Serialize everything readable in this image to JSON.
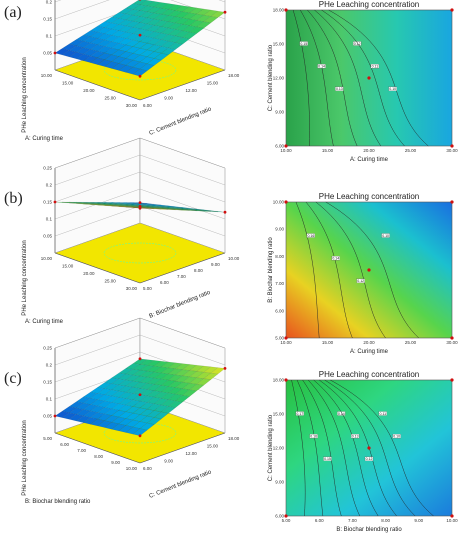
{
  "panels": [
    {
      "letter": "(a)"
    },
    {
      "letter": "(b)"
    },
    {
      "letter": "(c)"
    }
  ],
  "chart_data": [
    {
      "type": "surface",
      "panel": "(a)",
      "zlabel": "PHe Leaching concentration",
      "xlabel": "A: Curing time",
      "ylabel": "C: Cement blending ratio",
      "x_ticks": [
        "10.00",
        "15.00",
        "20.00",
        "25.00",
        "30.00"
      ],
      "y_ticks": [
        "6.00",
        "9.00",
        "12.00",
        "15.00",
        "18.00"
      ],
      "z_ticks": [
        "0.05",
        "0.1",
        "0.15",
        "0.2",
        "0.25"
      ],
      "corner_z": {
        "x_low_y_low": 0.07,
        "x_high_y_low": 0.05,
        "x_low_y_high": 0.17,
        "x_high_y_high": 0.12
      }
    },
    {
      "type": "contour",
      "panel": "(a)",
      "title": "PHe Leaching concentration",
      "xlabel": "A: Curing time",
      "ylabel": "C: Cement blending ratio",
      "x_ticks": [
        "10.00",
        "15.00",
        "20.00",
        "25.00",
        "30.00"
      ],
      "y_ticks": [
        "6.00",
        "9.00",
        "12.00",
        "15.00",
        "18.00"
      ],
      "contour_labels": [
        "0.15",
        "0.14",
        "0.13",
        "0.12",
        "0.11",
        "0.10"
      ]
    },
    {
      "type": "surface",
      "panel": "(b)",
      "zlabel": "PHe Leaching concentration",
      "xlabel": "A: Curing time",
      "ylabel": "B: Biochar blending ratio",
      "x_ticks": [
        "10.00",
        "15.00",
        "20.00",
        "25.00",
        "30.00"
      ],
      "y_ticks": [
        "5.00",
        "6.00",
        "7.00",
        "8.00",
        "9.00",
        "10.00"
      ],
      "z_ticks": [
        "0.05",
        "0.1",
        "0.15",
        "0.2",
        "0.25"
      ],
      "corner_z": {
        "x_low_y_low": 0.22,
        "x_high_y_low": 0.15,
        "x_low_y_high": 0.12,
        "x_high_y_high": 0.06
      }
    },
    {
      "type": "contour",
      "panel": "(b)",
      "title": "PHe Leaching concentration",
      "xlabel": "A: Curing time",
      "ylabel": "B: Biochar blending ratio",
      "x_ticks": [
        "10.00",
        "15.00",
        "20.00",
        "25.00",
        "30.00"
      ],
      "y_ticks": [
        "5.00",
        "6.00",
        "7.00",
        "8.00",
        "9.00",
        "10.00"
      ],
      "contour_labels": [
        "0.16",
        "0.14",
        "0.12",
        "0.10"
      ]
    },
    {
      "type": "surface",
      "panel": "(c)",
      "zlabel": "PHe Leaching concentration",
      "xlabel": "B: Biochar blending ratio",
      "ylabel": "C: Cement blending ratio",
      "x_ticks": [
        "5.00",
        "6.00",
        "7.00",
        "8.00",
        "9.00",
        "10.00"
      ],
      "y_ticks": [
        "6.00",
        "9.00",
        "12.00",
        "15.00",
        "18.00"
      ],
      "z_ticks": [
        "0.05",
        "0.1",
        "0.15",
        "0.2",
        "0.25"
      ],
      "corner_z": {
        "x_low_y_low": 0.08,
        "x_high_y_low": 0.05,
        "x_low_y_high": 0.19,
        "x_high_y_high": 0.13
      }
    },
    {
      "type": "contour",
      "panel": "(c)",
      "title": "PHe Leaching concentration",
      "xlabel": "B: Biochar blending ratio",
      "ylabel": "C: Cement blending ratio",
      "x_ticks": [
        "5.00",
        "6.00",
        "7.00",
        "8.00",
        "9.00",
        "10.00"
      ],
      "y_ticks": [
        "6.00",
        "9.00",
        "12.00",
        "15.00",
        "18.00"
      ],
      "contour_labels": [
        "0.17",
        "0.16",
        "0.15",
        "0.14",
        "0.13",
        "0.12",
        "0.11",
        "0.10"
      ]
    }
  ]
}
